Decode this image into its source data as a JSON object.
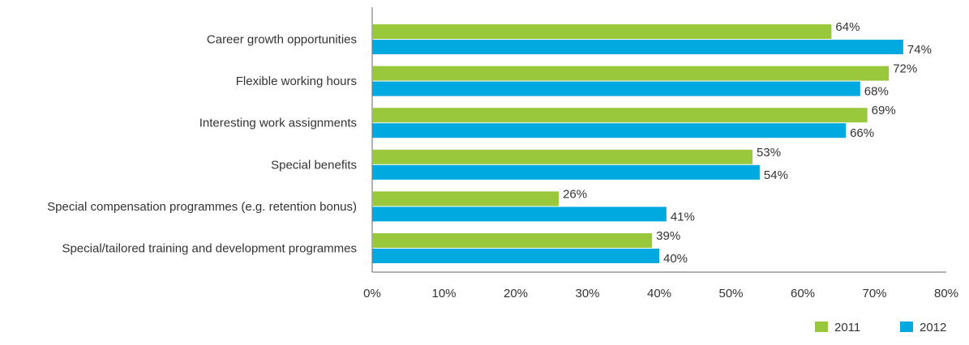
{
  "chart_data": {
    "type": "bar",
    "orientation": "horizontal",
    "categories": [
      "Career growth opportunities",
      "Flexible working hours",
      "Interesting work assignments",
      "Special benefits",
      "Special compensation programmes (e.g. retention bonus)",
      "Special/tailored training and development programmes"
    ],
    "series": [
      {
        "name": "2011",
        "color": "#99c83c",
        "values": [
          64,
          72,
          69,
          53,
          26,
          39
        ]
      },
      {
        "name": "2012",
        "color": "#00a9e0",
        "values": [
          74,
          68,
          66,
          54,
          41,
          40
        ]
      }
    ],
    "value_suffix": "%",
    "xlim": [
      0,
      80
    ],
    "xticks": [
      0,
      10,
      20,
      30,
      40,
      50,
      60,
      70,
      80
    ],
    "tick_suffix": "%",
    "grid": false,
    "legend_position": "bottom-right",
    "title": "",
    "xlabel": "",
    "ylabel": ""
  }
}
